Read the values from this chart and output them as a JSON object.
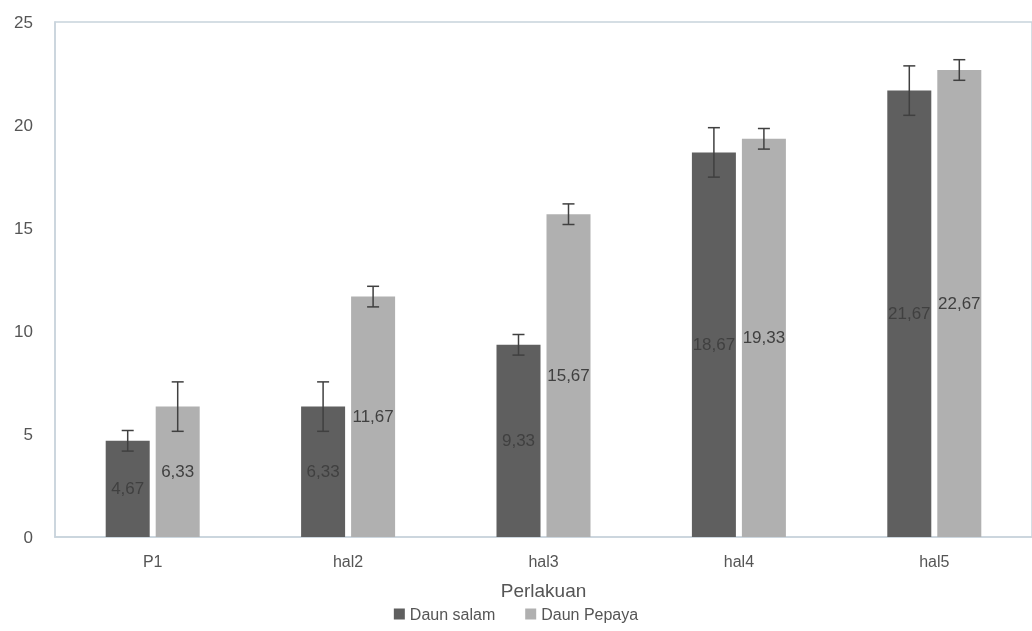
{
  "chart_data": {
    "type": "bar",
    "xlabel": "Perlakuan",
    "categories": [
      "P1",
      "hal2",
      "hal3",
      "hal4",
      "hal5"
    ],
    "series": [
      {
        "name": "Daun salam",
        "color": "#5f5f5f",
        "values": [
          4.67,
          6.33,
          9.33,
          18.67,
          21.67
        ],
        "errors": [
          0.5,
          1.2,
          0.5,
          1.2,
          1.2
        ],
        "value_labels": [
          "4,67",
          "6,33",
          "9,33",
          "18,67",
          "21,67"
        ]
      },
      {
        "name": "Daun Pepaya",
        "color": "#b0b0b0",
        "values": [
          6.33,
          11.67,
          15.67,
          19.33,
          22.67
        ],
        "errors": [
          1.2,
          0.5,
          0.5,
          0.5,
          0.5
        ],
        "value_labels": [
          "6,33",
          "11,67",
          "15,67",
          "19,33",
          "22,67"
        ]
      }
    ],
    "ylim": [
      0,
      25
    ],
    "yticks": [
      0,
      5,
      10,
      15,
      20,
      25
    ],
    "grid": false,
    "legend": "bottom"
  }
}
